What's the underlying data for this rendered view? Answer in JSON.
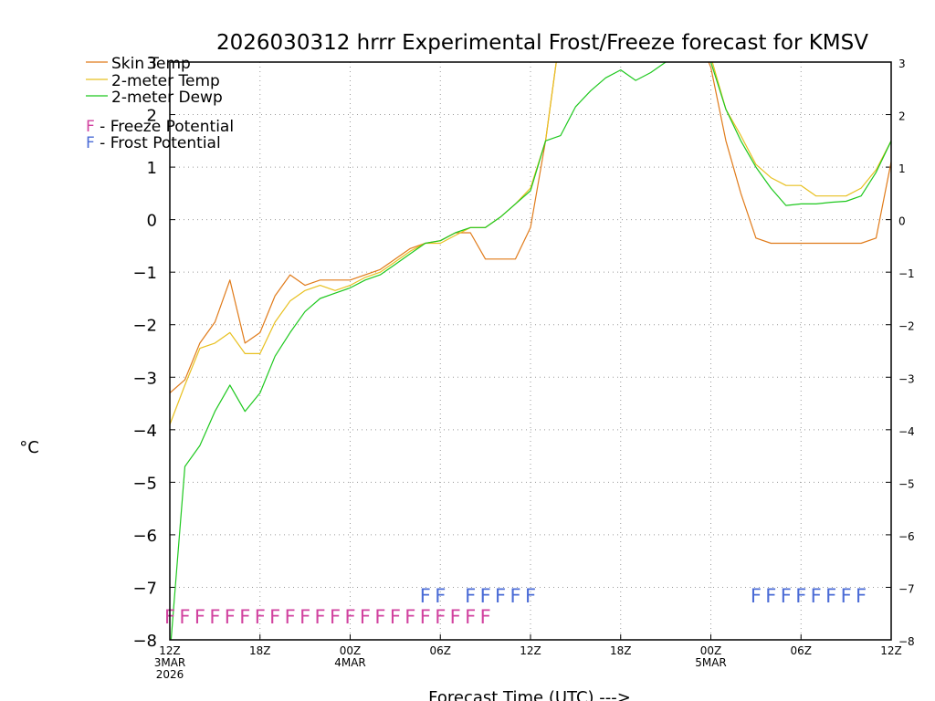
{
  "chart_data": {
    "type": "line",
    "title": "2026030312 hrrr Experimental Frost/Freeze forecast for KMSV",
    "ylabel": "°C",
    "xlabel": "Forecast Time (UTC) --->",
    "ylim": [
      -8,
      3
    ],
    "xlim": [
      0,
      48
    ],
    "grid": true,
    "legend_position": "top-left",
    "y_ticks": [
      -8,
      -7,
      -6,
      -5,
      -4,
      -3,
      -2,
      -1,
      0,
      1,
      2,
      3
    ],
    "x_ticks": [
      {
        "x": 0,
        "label": "12Z",
        "sub1": "3MAR",
        "sub2": "2026"
      },
      {
        "x": 6,
        "label": "18Z",
        "sub1": "",
        "sub2": ""
      },
      {
        "x": 12,
        "label": "00Z",
        "sub1": "4MAR",
        "sub2": ""
      },
      {
        "x": 18,
        "label": "06Z",
        "sub1": "",
        "sub2": ""
      },
      {
        "x": 24,
        "label": "12Z",
        "sub1": "",
        "sub2": ""
      },
      {
        "x": 30,
        "label": "18Z",
        "sub1": "",
        "sub2": ""
      },
      {
        "x": 36,
        "label": "00Z",
        "sub1": "5MAR",
        "sub2": ""
      },
      {
        "x": 42,
        "label": "06Z",
        "sub1": "",
        "sub2": ""
      },
      {
        "x": 48,
        "label": "12Z",
        "sub1": "",
        "sub2": ""
      }
    ],
    "series": [
      {
        "name": "Skin Temp",
        "color": "#e07b1a",
        "points": [
          [
            0,
            -3.3
          ],
          [
            1,
            -3.05
          ],
          [
            2,
            -2.35
          ],
          [
            3,
            -1.95
          ],
          [
            4,
            -1.15
          ],
          [
            5,
            -2.35
          ],
          [
            6,
            -2.15
          ],
          [
            7,
            -1.45
          ],
          [
            8,
            -1.05
          ],
          [
            9,
            -1.25
          ],
          [
            10,
            -1.15
          ],
          [
            11,
            -1.15
          ],
          [
            12,
            -1.15
          ],
          [
            13,
            -1.05
          ],
          [
            14,
            -0.95
          ],
          [
            15,
            -0.75
          ],
          [
            16,
            -0.55
          ],
          [
            17,
            -0.45
          ],
          [
            18,
            -0.4
          ],
          [
            19,
            -0.25
          ],
          [
            20,
            -0.25
          ],
          [
            21,
            -0.75
          ],
          [
            22,
            -0.75
          ],
          [
            23,
            -0.75
          ],
          [
            24,
            -0.15
          ],
          [
            25,
            1.5
          ],
          [
            26,
            3.6
          ],
          [
            35,
            3.6
          ],
          [
            36,
            2.9
          ],
          [
            37,
            1.5
          ],
          [
            38,
            0.5
          ],
          [
            39,
            -0.35
          ],
          [
            40,
            -0.45
          ],
          [
            41,
            -0.45
          ],
          [
            42,
            -0.45
          ],
          [
            43,
            -0.45
          ],
          [
            44,
            -0.45
          ],
          [
            45,
            -0.45
          ],
          [
            46,
            -0.45
          ],
          [
            47,
            -0.35
          ],
          [
            48,
            1.1
          ]
        ]
      },
      {
        "name": "2-meter Temp",
        "color": "#e8c020",
        "points": [
          [
            0,
            -3.9
          ],
          [
            1,
            -3.15
          ],
          [
            2,
            -2.45
          ],
          [
            3,
            -2.35
          ],
          [
            4,
            -2.15
          ],
          [
            5,
            -2.55
          ],
          [
            6,
            -2.55
          ],
          [
            7,
            -1.95
          ],
          [
            8,
            -1.55
          ],
          [
            9,
            -1.35
          ],
          [
            10,
            -1.25
          ],
          [
            11,
            -1.35
          ],
          [
            12,
            -1.25
          ],
          [
            13,
            -1.1
          ],
          [
            14,
            -1.0
          ],
          [
            15,
            -0.8
          ],
          [
            16,
            -0.6
          ],
          [
            17,
            -0.45
          ],
          [
            18,
            -0.45
          ],
          [
            19,
            -0.3
          ],
          [
            20,
            -0.15
          ],
          [
            21,
            -0.15
          ],
          [
            22,
            0.05
          ],
          [
            23,
            0.3
          ],
          [
            24,
            0.6
          ],
          [
            25,
            1.5
          ],
          [
            26,
            3.6
          ],
          [
            35,
            3.6
          ],
          [
            36,
            3.1
          ],
          [
            37,
            2.1
          ],
          [
            38,
            1.6
          ],
          [
            39,
            1.05
          ],
          [
            40,
            0.8
          ],
          [
            41,
            0.65
          ],
          [
            42,
            0.65
          ],
          [
            43,
            0.45
          ],
          [
            44,
            0.45
          ],
          [
            45,
            0.45
          ],
          [
            46,
            0.6
          ],
          [
            47,
            0.95
          ],
          [
            48,
            1.5
          ]
        ]
      },
      {
        "name": "2-meter Dewp",
        "color": "#1ec81e",
        "points": [
          [
            0,
            -8.3
          ],
          [
            1,
            -4.7
          ],
          [
            2,
            -4.3
          ],
          [
            3,
            -3.65
          ],
          [
            4,
            -3.15
          ],
          [
            5,
            -3.65
          ],
          [
            6,
            -3.3
          ],
          [
            7,
            -2.6
          ],
          [
            8,
            -2.15
          ],
          [
            9,
            -1.75
          ],
          [
            10,
            -1.5
          ],
          [
            11,
            -1.4
          ],
          [
            12,
            -1.3
          ],
          [
            13,
            -1.15
          ],
          [
            14,
            -1.05
          ],
          [
            15,
            -0.85
          ],
          [
            16,
            -0.65
          ],
          [
            17,
            -0.45
          ],
          [
            18,
            -0.4
          ],
          [
            19,
            -0.25
          ],
          [
            20,
            -0.15
          ],
          [
            21,
            -0.15
          ],
          [
            22,
            0.05
          ],
          [
            23,
            0.3
          ],
          [
            24,
            0.55
          ],
          [
            25,
            1.5
          ],
          [
            26,
            1.6
          ],
          [
            27,
            2.15
          ],
          [
            28,
            2.45
          ],
          [
            29,
            2.7
          ],
          [
            30,
            2.85
          ],
          [
            31,
            2.65
          ],
          [
            32,
            2.8
          ],
          [
            33,
            3.0
          ],
          [
            35,
            3.6
          ],
          [
            36,
            3.0
          ],
          [
            37,
            2.1
          ],
          [
            38,
            1.5
          ],
          [
            39,
            1.0
          ],
          [
            40,
            0.6
          ],
          [
            41,
            0.27
          ],
          [
            42,
            0.3
          ],
          [
            43,
            0.3
          ],
          [
            44,
            0.33
          ],
          [
            45,
            0.35
          ],
          [
            46,
            0.45
          ],
          [
            47,
            0.9
          ],
          [
            48,
            1.5
          ]
        ]
      }
    ],
    "flags": [
      {
        "name": "Freeze Potential",
        "letter": "F",
        "color": "#d1429f",
        "level": -7.55,
        "hours": [
          0,
          1,
          2,
          3,
          4,
          5,
          6,
          7,
          8,
          9,
          10,
          11,
          12,
          13,
          14,
          15,
          16,
          17,
          18,
          19,
          20,
          21
        ]
      },
      {
        "name": "Frost Potential",
        "letter": "F",
        "color": "#4a6bd6",
        "level": -7.15,
        "hours": [
          17,
          18,
          20,
          21,
          22,
          23,
          24,
          39,
          40,
          41,
          42,
          43,
          44,
          45,
          46
        ]
      }
    ]
  },
  "legend": {
    "skin": "Skin Temp",
    "t2m": "2-meter Temp",
    "dewp": "2-meter Dewp",
    "freeze_letter": "F",
    "freeze_text": " - Freeze Potential",
    "frost_letter": "F",
    "frost_text": " - Frost Potential"
  }
}
